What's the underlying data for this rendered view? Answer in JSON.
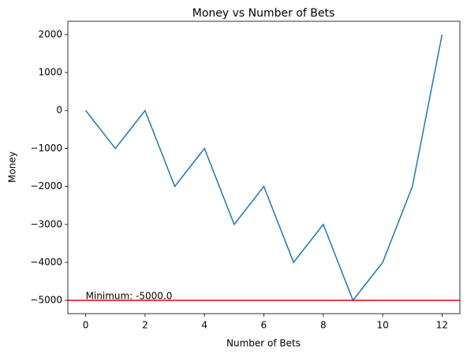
{
  "chart_data": {
    "type": "line",
    "title": "Money vs Number of Bets",
    "x_label": "Number of Bets",
    "y_label": "Money",
    "x": [
      0,
      1,
      2,
      3,
      4,
      5,
      6,
      7,
      8,
      9,
      10,
      11,
      12
    ],
    "series": [
      {
        "color": "#1f77b4",
        "values": [
          0,
          -1000,
          0,
          -2000,
          -1000,
          -3000,
          -2000,
          -4000,
          -3000,
          -5000,
          -4000,
          -2000,
          2000
        ]
      }
    ],
    "xlim": [
      -0.6,
      12.6
    ],
    "ylim": [
      -5350,
      2350
    ],
    "xticks": [
      0,
      2,
      4,
      6,
      8,
      10,
      12
    ],
    "yticks": [
      {
        "value": -5000,
        "label": "−5000"
      },
      {
        "value": -4000,
        "label": "−4000"
      },
      {
        "value": -3000,
        "label": "−3000"
      },
      {
        "value": -2000,
        "label": "−2000"
      },
      {
        "value": -1000,
        "label": "−1000"
      },
      0,
      1000,
      2000
    ],
    "hline": {
      "value": -5000,
      "color": "#ff0000"
    },
    "annotation": {
      "text": "Minimum: -5000.0",
      "x": 0,
      "y": -5000
    }
  }
}
